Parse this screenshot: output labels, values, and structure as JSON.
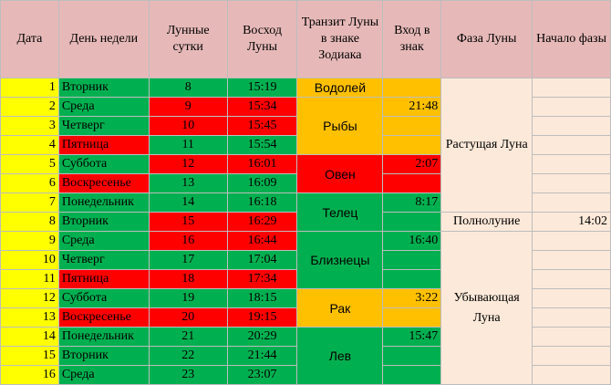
{
  "headers": {
    "date": "Дата",
    "weekday": "День недели",
    "lunar_days": "Лунные сутки",
    "moonrise": "Восход Луны",
    "transit": "Транзит Луны в знаке Зодиака",
    "enter": "Вход в знак",
    "phase": "Фаза Луны",
    "phase_start": "Начало фазы"
  },
  "rows": [
    {
      "date": "1",
      "weekday": "Вторник",
      "lunar": "8",
      "rise": "15:19",
      "enter": ""
    },
    {
      "date": "2",
      "weekday": "Среда",
      "lunar": "9",
      "rise": "15:34",
      "enter": "21:48"
    },
    {
      "date": "3",
      "weekday": "Четверг",
      "lunar": "10",
      "rise": "15:45",
      "enter": ""
    },
    {
      "date": "4",
      "weekday": "Пятница",
      "lunar": "11",
      "rise": "15:54",
      "enter": ""
    },
    {
      "date": "5",
      "weekday": "Суббота",
      "lunar": "12",
      "rise": "16:01",
      "enter": "2:07"
    },
    {
      "date": "6",
      "weekday": "Воскресенье",
      "lunar": "13",
      "rise": "16:09",
      "enter": ""
    },
    {
      "date": "7",
      "weekday": "Понедельник",
      "lunar": "14",
      "rise": "16:18",
      "enter": "8:17"
    },
    {
      "date": "8",
      "weekday": "Вторник",
      "lunar": "15",
      "rise": "16:29",
      "enter": ""
    },
    {
      "date": "9",
      "weekday": "Среда",
      "lunar": "16",
      "rise": "16:44",
      "enter": "16:40"
    },
    {
      "date": "10",
      "weekday": "Четверг",
      "lunar": "17",
      "rise": "17:04",
      "enter": ""
    },
    {
      "date": "11",
      "weekday": "Пятница",
      "lunar": "18",
      "rise": "17:34",
      "enter": ""
    },
    {
      "date": "12",
      "weekday": "Суббота",
      "lunar": "19",
      "rise": "18:15",
      "enter": "3:22"
    },
    {
      "date": "13",
      "weekday": "Воскресенье",
      "lunar": "20",
      "rise": "19:15",
      "enter": ""
    },
    {
      "date": "14",
      "weekday": "Понедельник",
      "lunar": "21",
      "rise": "20:29",
      "enter": "15:47"
    },
    {
      "date": "15",
      "weekday": "Вторник",
      "lunar": "22",
      "rise": "21:44",
      "enter": ""
    },
    {
      "date": "16",
      "weekday": "Среда",
      "lunar": "23",
      "rise": "23:07",
      "enter": ""
    }
  ],
  "signs": [
    "Водолей",
    "Рыбы",
    "Овен",
    "Телец",
    "Близнецы",
    "Рак",
    "Лев"
  ],
  "phases": {
    "waxing": "Растущая Луна",
    "full": "Полнолуние",
    "full_start": "14:02",
    "waning": "Убывающая Луна"
  },
  "colors": {
    "header": "#e6b9b8",
    "date": "#ffff00",
    "favorable": "#00b050",
    "unfavorable": "#ff0000",
    "sign_orange": "#ffc000",
    "phase_bg": "#fde9d9"
  }
}
